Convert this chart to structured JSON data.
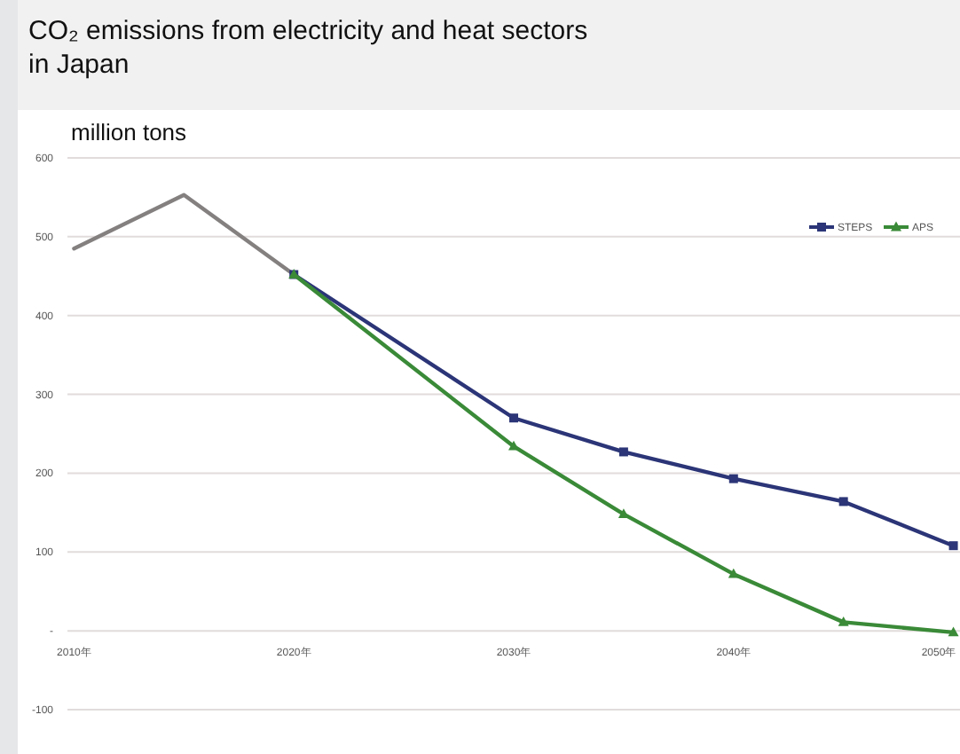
{
  "chart_data": {
    "type": "line",
    "title": "CO₂ emissions from electricity and heat sectors in Japan",
    "ylabel": "million tons",
    "series": [
      {
        "color": "#848080",
        "x": [
          2010,
          2015,
          2020
        ],
        "values": [
          485,
          553,
          452
        ],
        "marker": "none"
      },
      {
        "name": "STEPS",
        "color": "#2b3577",
        "x": [
          2020,
          2030,
          2035,
          2040,
          2045,
          2050
        ],
        "values": [
          452,
          270,
          227,
          193,
          164,
          108
        ],
        "marker": "square"
      },
      {
        "name": "APS",
        "color": "#3a8a38",
        "x": [
          2020,
          2030,
          2035,
          2040,
          2045,
          2050
        ],
        "values": [
          452,
          234,
          148,
          72,
          11,
          -2
        ],
        "marker": "triangle"
      }
    ],
    "xlim": [
      2009.7,
      2050.3
    ],
    "ylim": [
      -100,
      600
    ],
    "xticks": [
      {
        "value": 2010,
        "label": "2010年"
      },
      {
        "value": 2020,
        "label": "2020年"
      },
      {
        "value": 2030,
        "label": "2030年"
      },
      {
        "value": 2040,
        "label": "2040年"
      },
      {
        "value": 2050,
        "label": "2050年"
      }
    ],
    "yticks": [
      -100,
      {
        "value": 0,
        "label": "-"
      },
      100,
      200,
      300,
      400,
      500,
      600
    ],
    "grid": "y",
    "legend": "top right"
  }
}
